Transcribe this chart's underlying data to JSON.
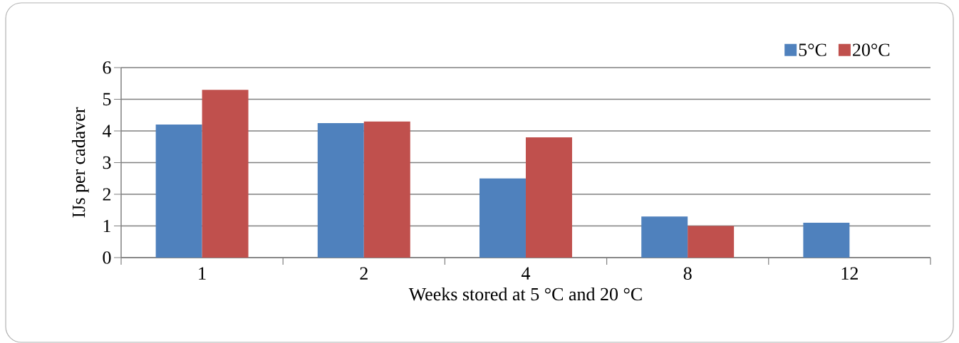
{
  "chart_data": {
    "type": "bar",
    "xlabel": "Weeks stored at 5 °C and 20 °C",
    "ylabel": "IJs per cadaver",
    "categories": [
      "1",
      "2",
      "4",
      "8",
      "12"
    ],
    "series": [
      {
        "name": "5°C",
        "color": "#4f81bd",
        "values": [
          4.2,
          4.25,
          2.5,
          1.3,
          1.1
        ]
      },
      {
        "name": "20°C",
        "color": "#c0504d",
        "values": [
          5.3,
          4.3,
          3.8,
          1.0,
          null
        ]
      }
    ],
    "ylim": [
      0,
      6
    ],
    "yticks": [
      0,
      1,
      2,
      3,
      4,
      5,
      6
    ],
    "grid": "y",
    "legend": "top right"
  }
}
